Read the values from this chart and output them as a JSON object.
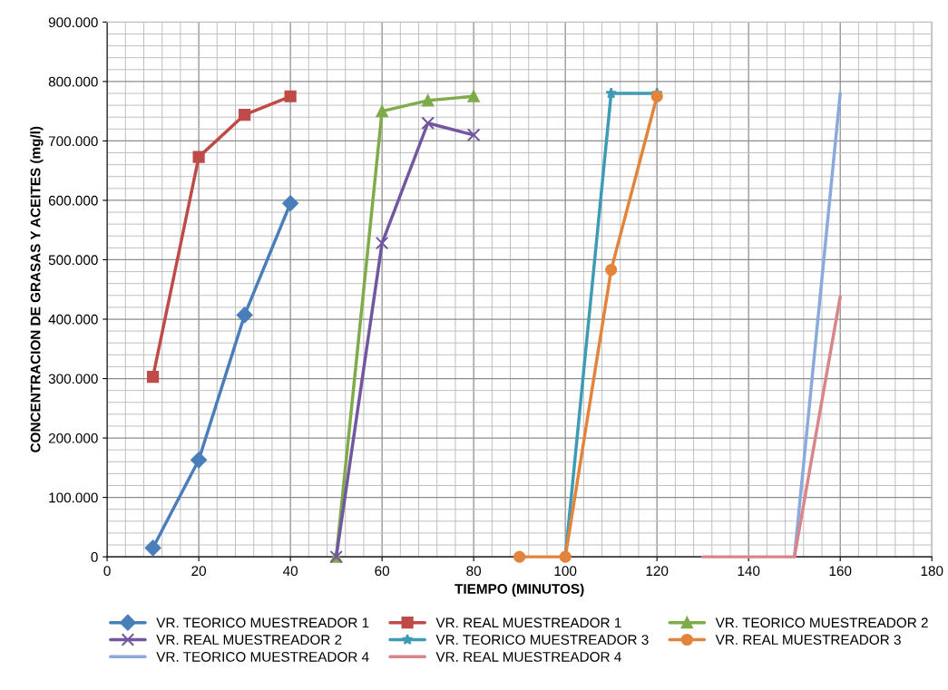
{
  "chart_data": {
    "type": "line",
    "xlabel": "TIEMPO (MINUTOS)",
    "ylabel": "CONCENTRACION DE GRASAS Y ACEITES (mg/l)",
    "xlim": [
      0,
      180
    ],
    "xticks": [
      0,
      20,
      40,
      60,
      80,
      100,
      120,
      140,
      160,
      180
    ],
    "ylim": [
      0,
      900000
    ],
    "yticks": [
      0,
      {
        "value": 100000,
        "label": "100.000"
      },
      {
        "value": 200000,
        "label": "200.000"
      },
      {
        "value": 300000,
        "label": "300.000"
      },
      {
        "value": 400000,
        "label": "400.000"
      },
      {
        "value": 500000,
        "label": "500.000"
      },
      {
        "value": 600000,
        "label": "600.000"
      },
      {
        "value": 700000,
        "label": "700.000"
      },
      {
        "value": 800000,
        "label": "800.000"
      },
      {
        "value": 900000,
        "label": "900.000"
      }
    ],
    "grid": true,
    "legend": "bottom",
    "line_style": "solid",
    "series": [
      {
        "name": "VR. TEORICO MUESTREADOR 1",
        "color": "#4a7ebb",
        "marker": "diamond",
        "x": [
          10,
          20,
          30,
          40
        ],
        "values": [
          15000,
          163000,
          407000,
          595000
        ]
      },
      {
        "name": "VR. REAL MUESTREADOR 1",
        "color": "#be4b48",
        "marker": "square",
        "x": [
          10,
          20,
          30,
          40
        ],
        "values": [
          303000,
          673000,
          744000,
          775000
        ]
      },
      {
        "name": "VR. TEORICO MUESTREADOR 2",
        "color": "#7eac4a",
        "marker": "triangle",
        "x": [
          50,
          60,
          70,
          80
        ],
        "values": [
          0,
          750000,
          768000,
          775000
        ]
      },
      {
        "name": "VR. REAL MUESTREADOR 2",
        "color": "#7256a0",
        "marker": "cross",
        "x": [
          50,
          60,
          70,
          80
        ],
        "values": [
          0,
          528000,
          730000,
          710000
        ]
      },
      {
        "name": "VR. TEORICO MUESTREADOR 3",
        "color": "#3d9bb5",
        "marker": "star",
        "x": [
          100,
          110,
          120
        ],
        "values": [
          0,
          780000,
          780000
        ]
      },
      {
        "name": "VR. REAL MUESTREADOR 3",
        "color": "#e3843c",
        "marker": "circle",
        "x": [
          90,
          100,
          110,
          120
        ],
        "values": [
          0,
          0,
          483000,
          775000
        ]
      },
      {
        "name": "VR. TEORICO MUESTREADOR 4",
        "color": "#8aa9dc",
        "marker": "none",
        "x": [
          150,
          160
        ],
        "values": [
          0,
          780000
        ]
      },
      {
        "name": "VR. REAL MUESTREADOR 4",
        "color": "#d9868a",
        "marker": "none",
        "x": [
          130,
          140,
          150,
          160
        ],
        "values": [
          0,
          0,
          0,
          438000
        ]
      }
    ]
  }
}
